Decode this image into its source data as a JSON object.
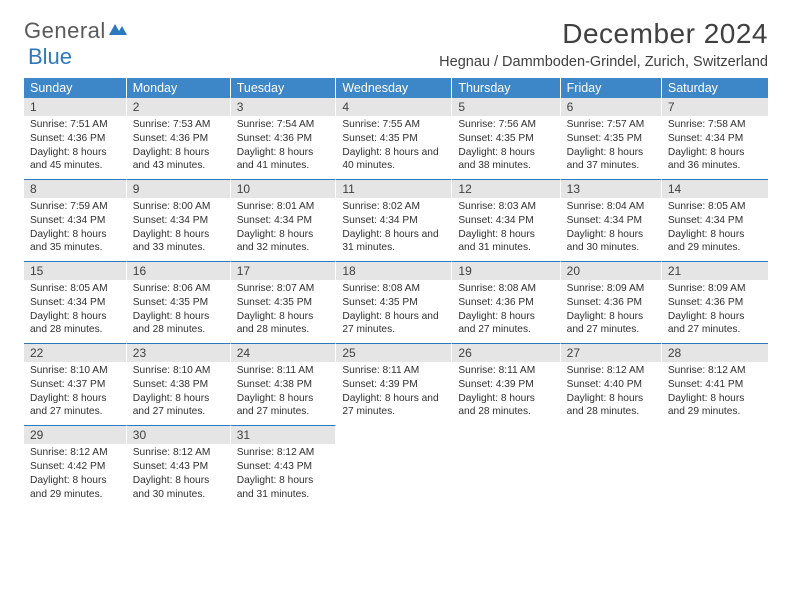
{
  "logo": {
    "text1": "General",
    "text2": "Blue"
  },
  "title": "December 2024",
  "location": "Hegnau / Dammboden-Grindel, Zurich, Switzerland",
  "colors": {
    "header_bg": "#3d87c9",
    "header_text": "#ffffff",
    "daynum_bg": "#e5e5e5",
    "rule": "#2d78bf",
    "text": "#404040",
    "logo_gray": "#5a5a5a",
    "logo_blue": "#2d78bf"
  },
  "day_headers": [
    "Sunday",
    "Monday",
    "Tuesday",
    "Wednesday",
    "Thursday",
    "Friday",
    "Saturday"
  ],
  "weeks": [
    [
      {
        "n": "1",
        "sr": "7:51 AM",
        "ss": "4:36 PM",
        "dl": "8 hours and 45 minutes."
      },
      {
        "n": "2",
        "sr": "7:53 AM",
        "ss": "4:36 PM",
        "dl": "8 hours and 43 minutes."
      },
      {
        "n": "3",
        "sr": "7:54 AM",
        "ss": "4:36 PM",
        "dl": "8 hours and 41 minutes."
      },
      {
        "n": "4",
        "sr": "7:55 AM",
        "ss": "4:35 PM",
        "dl": "8 hours and 40 minutes."
      },
      {
        "n": "5",
        "sr": "7:56 AM",
        "ss": "4:35 PM",
        "dl": "8 hours and 38 minutes."
      },
      {
        "n": "6",
        "sr": "7:57 AM",
        "ss": "4:35 PM",
        "dl": "8 hours and 37 minutes."
      },
      {
        "n": "7",
        "sr": "7:58 AM",
        "ss": "4:34 PM",
        "dl": "8 hours and 36 minutes."
      }
    ],
    [
      {
        "n": "8",
        "sr": "7:59 AM",
        "ss": "4:34 PM",
        "dl": "8 hours and 35 minutes."
      },
      {
        "n": "9",
        "sr": "8:00 AM",
        "ss": "4:34 PM",
        "dl": "8 hours and 33 minutes."
      },
      {
        "n": "10",
        "sr": "8:01 AM",
        "ss": "4:34 PM",
        "dl": "8 hours and 32 minutes."
      },
      {
        "n": "11",
        "sr": "8:02 AM",
        "ss": "4:34 PM",
        "dl": "8 hours and 31 minutes."
      },
      {
        "n": "12",
        "sr": "8:03 AM",
        "ss": "4:34 PM",
        "dl": "8 hours and 31 minutes."
      },
      {
        "n": "13",
        "sr": "8:04 AM",
        "ss": "4:34 PM",
        "dl": "8 hours and 30 minutes."
      },
      {
        "n": "14",
        "sr": "8:05 AM",
        "ss": "4:34 PM",
        "dl": "8 hours and 29 minutes."
      }
    ],
    [
      {
        "n": "15",
        "sr": "8:05 AM",
        "ss": "4:34 PM",
        "dl": "8 hours and 28 minutes."
      },
      {
        "n": "16",
        "sr": "8:06 AM",
        "ss": "4:35 PM",
        "dl": "8 hours and 28 minutes."
      },
      {
        "n": "17",
        "sr": "8:07 AM",
        "ss": "4:35 PM",
        "dl": "8 hours and 28 minutes."
      },
      {
        "n": "18",
        "sr": "8:08 AM",
        "ss": "4:35 PM",
        "dl": "8 hours and 27 minutes."
      },
      {
        "n": "19",
        "sr": "8:08 AM",
        "ss": "4:36 PM",
        "dl": "8 hours and 27 minutes."
      },
      {
        "n": "20",
        "sr": "8:09 AM",
        "ss": "4:36 PM",
        "dl": "8 hours and 27 minutes."
      },
      {
        "n": "21",
        "sr": "8:09 AM",
        "ss": "4:36 PM",
        "dl": "8 hours and 27 minutes."
      }
    ],
    [
      {
        "n": "22",
        "sr": "8:10 AM",
        "ss": "4:37 PM",
        "dl": "8 hours and 27 minutes."
      },
      {
        "n": "23",
        "sr": "8:10 AM",
        "ss": "4:38 PM",
        "dl": "8 hours and 27 minutes."
      },
      {
        "n": "24",
        "sr": "8:11 AM",
        "ss": "4:38 PM",
        "dl": "8 hours and 27 minutes."
      },
      {
        "n": "25",
        "sr": "8:11 AM",
        "ss": "4:39 PM",
        "dl": "8 hours and 27 minutes."
      },
      {
        "n": "26",
        "sr": "8:11 AM",
        "ss": "4:39 PM",
        "dl": "8 hours and 28 minutes."
      },
      {
        "n": "27",
        "sr": "8:12 AM",
        "ss": "4:40 PM",
        "dl": "8 hours and 28 minutes."
      },
      {
        "n": "28",
        "sr": "8:12 AM",
        "ss": "4:41 PM",
        "dl": "8 hours and 29 minutes."
      }
    ],
    [
      {
        "n": "29",
        "sr": "8:12 AM",
        "ss": "4:42 PM",
        "dl": "8 hours and 29 minutes."
      },
      {
        "n": "30",
        "sr": "8:12 AM",
        "ss": "4:43 PM",
        "dl": "8 hours and 30 minutes."
      },
      {
        "n": "31",
        "sr": "8:12 AM",
        "ss": "4:43 PM",
        "dl": "8 hours and 31 minutes."
      },
      null,
      null,
      null,
      null
    ]
  ],
  "labels": {
    "sunrise": "Sunrise:",
    "sunset": "Sunset:",
    "daylight": "Daylight:"
  }
}
